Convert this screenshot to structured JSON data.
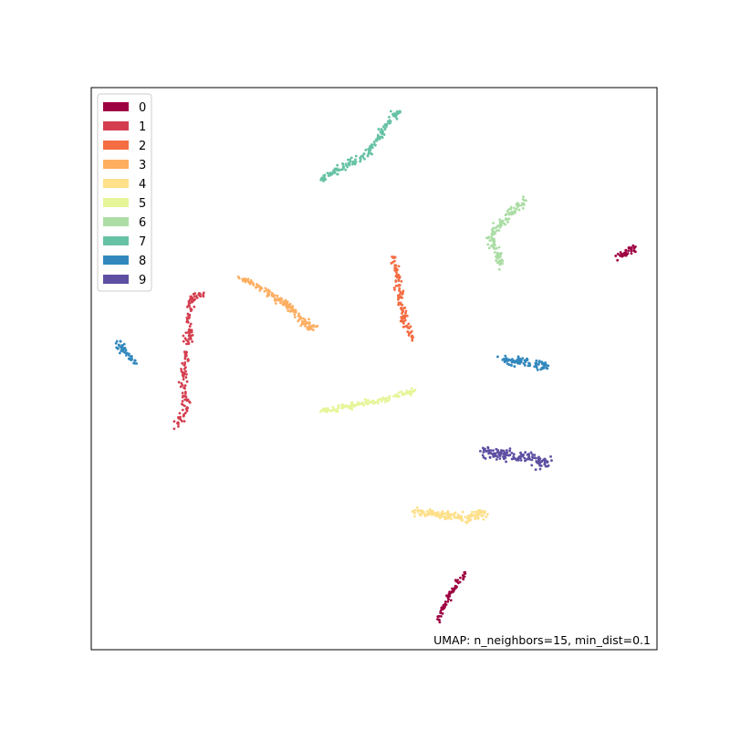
{
  "chart_data": {
    "type": "scatter",
    "title": "",
    "xlabel": "",
    "ylabel": "",
    "axis_ticks": false,
    "grid": false,
    "legend_placement": "top-left",
    "annotation": "UMAP: n_neighbors=15, min_dist=0.1",
    "xlim": [
      0,
      100
    ],
    "ylim": [
      0,
      100
    ],
    "series": [
      {
        "name": "0",
        "color": "#9e0142",
        "clusters": [
          {
            "path": [
              [
                61.0,
                5.0
              ],
              [
                63.0,
                9.0
              ],
              [
                65.0,
                12.5
              ],
              [
                66.2,
                13.6
              ]
            ],
            "spread": 0.45,
            "n": 70
          },
          {
            "path": [
              [
                92.8,
                70.0
              ],
              [
                95.0,
                70.6
              ],
              [
                96.2,
                71.7
              ]
            ],
            "spread": 0.55,
            "n": 40
          }
        ]
      },
      {
        "name": "1",
        "color": "#d53e4f",
        "clusters": [
          {
            "path": [
              [
                15.0,
                40.0
              ],
              [
                16.8,
                42.5
              ],
              [
                16.2,
                48.0
              ],
              [
                17.0,
                53.0
              ],
              [
                17.4,
                56.5
              ],
              [
                17.1,
                60.0
              ],
              [
                17.9,
                62.6
              ],
              [
                20.0,
                63.2
              ]
            ],
            "spread": 0.5,
            "n": 160
          }
        ]
      },
      {
        "name": "2",
        "color": "#f46d43",
        "clusters": [
          {
            "path": [
              [
                53.3,
                70.0
              ],
              [
                54.1,
                67.0
              ],
              [
                54.5,
                64.0
              ],
              [
                54.9,
                61.0
              ],
              [
                55.7,
                57.0
              ],
              [
                56.8,
                55.5
              ]
            ],
            "spread": 0.55,
            "n": 110
          }
        ]
      },
      {
        "name": "3",
        "color": "#fdae61",
        "clusters": [
          {
            "path": [
              [
                26.5,
                66.0
              ],
              [
                29.0,
                65.0
              ],
              [
                32.0,
                63.0
              ],
              [
                35.0,
                61.0
              ],
              [
                37.0,
                59.0
              ],
              [
                38.5,
                57.5
              ],
              [
                39.5,
                57.5
              ]
            ],
            "spread": 0.55,
            "n": 150
          }
        ]
      },
      {
        "name": "4",
        "color": "#fee08b",
        "clusters": [
          {
            "path": [
              [
                57.0,
                24.5
              ],
              [
                60.0,
                24.2
              ],
              [
                64.0,
                23.8
              ],
              [
                67.0,
                23.5
              ],
              [
                69.5,
                24.5
              ]
            ],
            "spread": 0.6,
            "n": 160
          }
        ]
      },
      {
        "name": "5",
        "color": "#e6f598",
        "clusters": [
          {
            "path": [
              [
                40.5,
                42.5
              ],
              [
                44.0,
                43.0
              ],
              [
                48.0,
                43.8
              ],
              [
                52.0,
                44.5
              ],
              [
                55.0,
                45.5
              ],
              [
                57.3,
                46.2
              ]
            ],
            "spread": 0.45,
            "n": 130
          }
        ]
      },
      {
        "name": "6",
        "color": "#abdda4",
        "clusters": [
          {
            "path": [
              [
                76.8,
                80.0
              ],
              [
                74.5,
                78.0
              ],
              [
                72.6,
                76.0
              ],
              [
                70.5,
                73.5
              ],
              [
                71.2,
                71.5
              ],
              [
                72.6,
                68.3
              ]
            ],
            "spread": 0.6,
            "n": 140
          }
        ]
      },
      {
        "name": "7",
        "color": "#66c2a5",
        "clusters": [
          {
            "path": [
              [
                40.5,
                83.5
              ],
              [
                43.0,
                85.0
              ],
              [
                46.0,
                86.5
              ],
              [
                48.5,
                88.0
              ],
              [
                50.5,
                90.5
              ],
              [
                52.3,
                93.5
              ],
              [
                53.2,
                95.0
              ],
              [
                54.5,
                95.5
              ]
            ],
            "spread": 0.55,
            "n": 170
          }
        ]
      },
      {
        "name": "8",
        "color": "#3288bd",
        "clusters": [
          {
            "path": [
              [
                4.8,
                55.0
              ],
              [
                5.3,
                53.5
              ],
              [
                6.5,
                52.5
              ],
              [
                8.0,
                51.0
              ]
            ],
            "spread": 0.6,
            "n": 45
          },
          {
            "path": [
              [
                72.8,
                51.5
              ],
              [
                75.5,
                51.2
              ],
              [
                78.0,
                50.8
              ],
              [
                80.5,
                50.5
              ]
            ],
            "spread": 0.65,
            "n": 100
          }
        ]
      },
      {
        "name": "9",
        "color": "#5e4fa2",
        "clusters": [
          {
            "path": [
              [
                69.0,
                35.5
              ],
              [
                72.0,
                34.8
              ],
              [
                75.5,
                34.5
              ],
              [
                78.0,
                34.2
              ],
              [
                79.5,
                33.0
              ],
              [
                81.0,
                34.0
              ]
            ],
            "spread": 0.8,
            "n": 150
          }
        ]
      }
    ]
  }
}
